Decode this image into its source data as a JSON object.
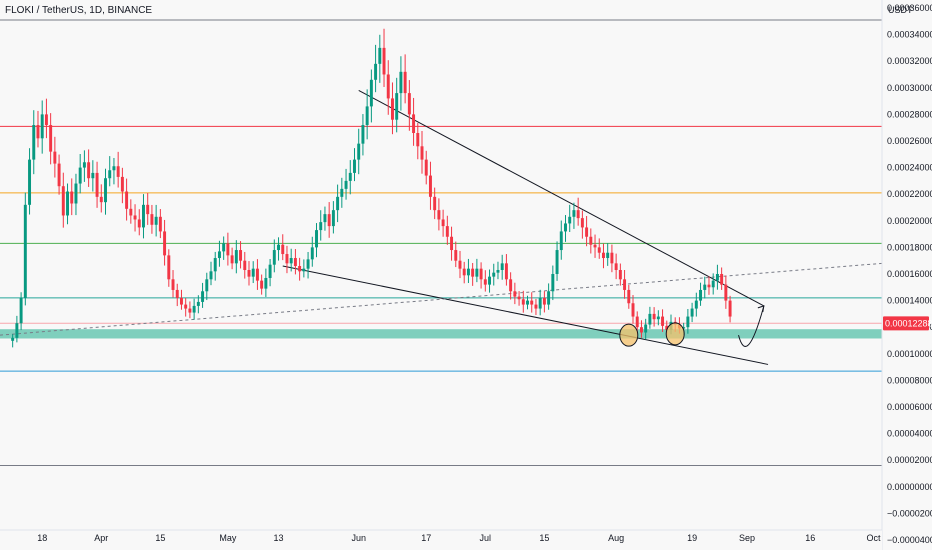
{
  "header": {
    "title": "FLOKI / TetherUS, 1D, BINANCE"
  },
  "chart_data": {
    "type": "candlestick",
    "title": "FLOKI / TetherUS, 1D, BINANCE",
    "y_unit": "USDT",
    "ylim": [
      -4e-05,
      0.000366
    ],
    "y_ticks": [
      {
        "value": 0.00036,
        "label": "0.00036000"
      },
      {
        "value": 0.00034,
        "label": "0.00034000"
      },
      {
        "value": 0.00032,
        "label": "0.00032000"
      },
      {
        "value": 0.0003,
        "label": "0.00030000"
      },
      {
        "value": 0.00028,
        "label": "0.00028000"
      },
      {
        "value": 0.00026,
        "label": "0.00026000"
      },
      {
        "value": 0.00024,
        "label": "0.00024000"
      },
      {
        "value": 0.00022,
        "label": "0.00022000"
      },
      {
        "value": 0.0002,
        "label": "0.00020000"
      },
      {
        "value": 0.00018,
        "label": "0.00018000"
      },
      {
        "value": 0.00016,
        "label": "0.00016000"
      },
      {
        "value": 0.00014,
        "label": "0.00014000"
      },
      {
        "value": 0.00012,
        "label": "0.00012000"
      },
      {
        "value": 0.0001,
        "label": "0.00010000"
      },
      {
        "value": 8e-05,
        "label": "0.00008000"
      },
      {
        "value": 6e-05,
        "label": "0.00006000"
      },
      {
        "value": 4e-05,
        "label": "0.00004000"
      },
      {
        "value": 2e-05,
        "label": "0.00002000"
      },
      {
        "value": 0.0,
        "label": "0.00000000"
      },
      {
        "value": -2e-05,
        "label": "−0.00002000"
      },
      {
        "value": -4e-05,
        "label": "−0.00004000"
      }
    ],
    "x_ticks": [
      {
        "date": "2024-03-18",
        "label": "18"
      },
      {
        "date": "2024-04-01",
        "label": "Apr"
      },
      {
        "date": "2024-04-15",
        "label": "15"
      },
      {
        "date": "2024-05-01",
        "label": "May"
      },
      {
        "date": "2024-05-13",
        "label": "13"
      },
      {
        "date": "2024-06-01",
        "label": "Jun"
      },
      {
        "date": "2024-06-17",
        "label": "17"
      },
      {
        "date": "2024-07-01",
        "label": "Jul"
      },
      {
        "date": "2024-07-15",
        "label": "15"
      },
      {
        "date": "2024-08-01",
        "label": "Aug"
      },
      {
        "date": "2024-08-19",
        "label": "19"
      },
      {
        "date": "2024-09-01",
        "label": "Sep"
      },
      {
        "date": "2024-09-16",
        "label": "16"
      },
      {
        "date": "2024-10-01",
        "label": "Oct"
      }
    ],
    "x_range": [
      "2024-03-08",
      "2024-10-03"
    ],
    "current_price": {
      "value": 0.00012288,
      "label": "0.00012288",
      "color": "#f23645"
    },
    "candle_colors": {
      "up": "#089981",
      "down": "#f23645"
    },
    "support_zone": {
      "low": 0.0001115,
      "high": 0.0001185,
      "color": "#7fcfbd"
    },
    "horizontal_levels": [
      {
        "value": 0.000351,
        "color": "#787b86"
      },
      {
        "value": 0.000271,
        "color": "#f23645"
      },
      {
        "value": 0.000221,
        "color": "#f5a623"
      },
      {
        "value": 0.000183,
        "color": "#4caf50"
      },
      {
        "value": 0.000142,
        "color": "#26a69a"
      },
      {
        "value": 0.000123,
        "color": "#f7a6ac"
      },
      {
        "value": 8.7e-05,
        "color": "#2e9bd6"
      },
      {
        "value": 1.6e-05,
        "color": "#787b86"
      }
    ],
    "trendlines": [
      {
        "name": "upper-resistance",
        "from": {
          "date": "2024-06-01",
          "value": 0.000298
        },
        "to": {
          "date": "2024-09-05",
          "value": 0.000136
        },
        "color": "#131722",
        "style": "solid"
      },
      {
        "name": "lower-support",
        "from": {
          "date": "2024-05-14",
          "value": 0.000166
        },
        "to": {
          "date": "2024-09-06",
          "value": 9.2e-05
        },
        "color": "#131722",
        "style": "solid"
      },
      {
        "name": "dotted-trend",
        "from": {
          "date": "2024-03-08",
          "value": 0.000114
        },
        "to": {
          "date": "2024-10-03",
          "value": 0.000168
        },
        "color": "#787b86",
        "style": "dashed"
      }
    ],
    "highlight_circles": [
      {
        "date": "2024-08-04",
        "value": 0.000114
      },
      {
        "date": "2024-08-15",
        "value": 0.000115
      }
    ],
    "projection_arrow": {
      "from": {
        "date": "2024-08-30",
        "value": 0.000114
      },
      "via": {
        "date": "2024-09-01",
        "value": 0.0001
      },
      "to": {
        "date": "2024-09-05",
        "value": 0.000136
      }
    },
    "closes": [
      0.000112,
      0.000123,
      0.000142,
      0.000212,
      0.000246,
      0.000272,
      0.000262,
      0.00028,
      0.000272,
      0.000252,
      0.000243,
      0.000226,
      0.000204,
      0.000222,
      0.000213,
      0.000228,
      0.00024,
      0.000244,
      0.000232,
      0.000236,
      0.000218,
      0.000214,
      0.000232,
      0.000238,
      0.000241,
      0.000233,
      0.000222,
      0.000209,
      0.000204,
      0.000201,
      0.000195,
      0.000212,
      0.000205,
      0.000197,
      0.000203,
      0.000192,
      0.000174,
      0.000156,
      0.000148,
      0.000142,
      0.000137,
      0.000134,
      0.000131,
      0.000136,
      0.000139,
      0.000147,
      0.000156,
      0.000162,
      0.000172,
      0.000177,
      0.000183,
      0.000174,
      0.000168,
      0.000178,
      0.00017,
      0.000163,
      0.000158,
      0.000164,
      0.000155,
      0.000149,
      0.000157,
      0.000167,
      0.000178,
      0.000182,
      0.000175,
      0.000168,
      0.000172,
      0.000166,
      0.000162,
      0.000164,
      0.000171,
      0.00018,
      0.000193,
      0.000199,
      0.000205,
      0.000196,
      0.000208,
      0.000218,
      0.000224,
      0.00023,
      0.000236,
      0.000246,
      0.000258,
      0.000272,
      0.000286,
      0.000306,
      0.000318,
      0.00033,
      0.00031,
      0.000292,
      0.000276,
      0.000296,
      0.000312,
      0.000296,
      0.00028,
      0.000266,
      0.000256,
      0.000246,
      0.000234,
      0.000218,
      0.000208,
      0.000201,
      0.000196,
      0.000188,
      0.000178,
      0.00017,
      0.000164,
      0.000159,
      0.000164,
      0.000158,
      0.000164,
      0.000156,
      0.000152,
      0.000158,
      0.000161,
      0.000163,
      0.000168,
      0.000156,
      0.000147,
      0.000143,
      0.000141,
      0.000137,
      0.00014,
      0.000137,
      0.000134,
      0.000142,
      0.000137,
      0.000147,
      0.00016,
      0.000178,
      0.000192,
      0.000198,
      0.000203,
      0.000208,
      0.000202,
      0.000195,
      0.000188,
      0.000182,
      0.00018,
      0.000176,
      0.000172,
      0.000176,
      0.000168,
      0.000163,
      0.000156,
      0.000148,
      0.000138,
      0.000128,
      0.00012,
      0.000116,
      0.000122,
      0.00013,
      0.000126,
      0.000128,
      0.000121,
      0.000118,
      0.000124,
      0.000122,
      0.000119,
      0.00012,
      0.000128,
      0.000134,
      0.00014,
      0.000148,
      0.000152,
      0.00015,
      0.000155,
      0.00016,
      0.000152,
      0.00014,
      0.000128
    ],
    "start_date": "2024-03-11"
  }
}
